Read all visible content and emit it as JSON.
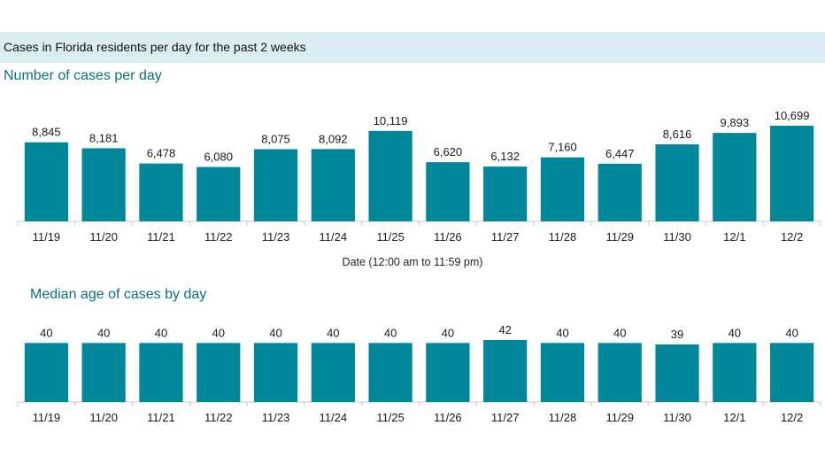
{
  "header": {
    "title": "Cases in Florida residents per day for the past 2 weeks"
  },
  "colors": {
    "bar": "#00879a",
    "banner": "#d9edf3",
    "subtitle": "#0b6f7f"
  },
  "chart_data": [
    {
      "type": "bar",
      "title": "Number of cases per day",
      "xlabel": "Date (12:00 am to 11:59 pm)",
      "ylabel": "",
      "ylim": [
        0,
        10699
      ],
      "grid": false,
      "categories": [
        "11/19",
        "11/20",
        "11/21",
        "11/22",
        "11/23",
        "11/24",
        "11/25",
        "11/26",
        "11/27",
        "11/28",
        "11/29",
        "11/30",
        "12/1",
        "12/2"
      ],
      "values": [
        8845,
        8181,
        6478,
        6080,
        8075,
        8092,
        10119,
        6620,
        6132,
        7160,
        6447,
        8616,
        9893,
        10699
      ],
      "data_labels": [
        "8,845",
        "8,181",
        "6,478",
        "6,080",
        "8,075",
        "8,092",
        "10,119",
        "6,620",
        "6,132",
        "7,160",
        "6,447",
        "8,616",
        "9,893",
        "10,699"
      ]
    },
    {
      "type": "bar",
      "title": "Median age of cases by day",
      "xlabel": "",
      "ylabel": "",
      "ylim": [
        0,
        42
      ],
      "grid": false,
      "categories": [
        "11/19",
        "11/20",
        "11/21",
        "11/22",
        "11/23",
        "11/24",
        "11/25",
        "11/26",
        "11/27",
        "11/28",
        "11/29",
        "11/30",
        "12/1",
        "12/2"
      ],
      "values": [
        40,
        40,
        40,
        40,
        40,
        40,
        40,
        40,
        42,
        40,
        40,
        39,
        40,
        40
      ],
      "data_labels": [
        "40",
        "40",
        "40",
        "40",
        "40",
        "40",
        "40",
        "40",
        "42",
        "40",
        "40",
        "39",
        "40",
        "40"
      ]
    }
  ]
}
